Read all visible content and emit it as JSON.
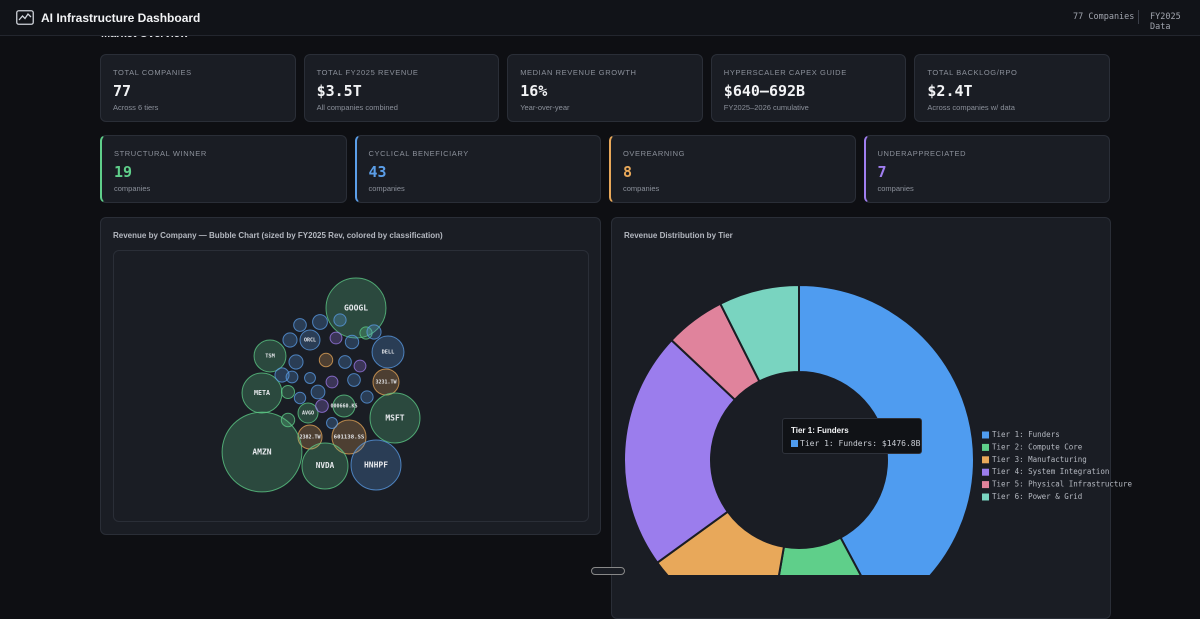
{
  "header": {
    "title": "AI Infrastructure Dashboard",
    "companies": "77 Companies",
    "period": "FY2025 Data"
  },
  "section_title": "Market Overview",
  "stats": [
    {
      "label": "TOTAL COMPANIES",
      "value": 77,
      "note": "Across 6 tiers"
    },
    {
      "label": "TOTAL FY2025 REVENUE",
      "value": "$3.5T",
      "note": "All companies combined"
    },
    {
      "label": "MEDIAN REVENUE GROWTH",
      "value": "16%",
      "note": "Year-over-year"
    },
    {
      "label": "HYPERSCALER CAPEX GUIDE",
      "value": "$640–692B",
      "note": "FY2025–2026 cumulative"
    },
    {
      "label": "TOTAL BACKLOG/RPO",
      "value": "$2.4T",
      "note": "Across companies w/ data"
    }
  ],
  "classifications": [
    {
      "label": "STRUCTURAL WINNER",
      "value": 19,
      "note": "companies",
      "color": "#5fcf8a"
    },
    {
      "label": "CYCLICAL BENEFICIARY",
      "value": 43,
      "note": "companies",
      "color": "#5b9ee8"
    },
    {
      "label": "OVEREARNING",
      "value": 8,
      "note": "companies",
      "color": "#e8a85a"
    },
    {
      "label": "UNDERAPPRECIATED",
      "value": 7,
      "note": "companies",
      "color": "#a07ef0"
    }
  ],
  "chart_data": [
    {
      "type": "bubble",
      "title": "Revenue by Company — Bubble Chart (sized by FY2025 Rev, colored by classification)",
      "points": [
        {
          "label": "GOOGL",
          "value": 360,
          "color": "#5fcf8a"
        },
        {
          "label": "DELL",
          "value": 102,
          "color": "#5b9ee8"
        },
        {
          "label": "TSM",
          "value": 102,
          "color": "#5fcf8a"
        },
        {
          "label": "ORCL",
          "value": 40,
          "color": "#5b9ee8"
        },
        {
          "label": "3231.TW",
          "value": 68,
          "color": "#e8a85a"
        },
        {
          "label": "META",
          "value": 160,
          "color": "#5fcf8a"
        },
        {
          "label": "MSFT",
          "value": 250,
          "color": "#5fcf8a"
        },
        {
          "label": "AVGO",
          "value": 40,
          "color": "#5fcf8a"
        },
        {
          "label": "000660.KS",
          "value": 48,
          "color": "#5fcf8a"
        },
        {
          "label": "2382.TW",
          "value": 58,
          "color": "#e8a85a"
        },
        {
          "label": "601138.SS",
          "value": 116,
          "color": "#e8a85a"
        },
        {
          "label": "AMZN",
          "value": 638,
          "color": "#5fcf8a"
        },
        {
          "label": "NVDA",
          "value": 212,
          "color": "#5fcf8a"
        },
        {
          "label": "HNHPF",
          "value": 250,
          "color": "#5b9ee8"
        },
        {
          "label": null,
          "value": 20,
          "color": "#5b9ee8"
        },
        {
          "label": null,
          "value": 16,
          "color": "#5b9ee8"
        },
        {
          "label": null,
          "value": 22,
          "color": "#5b9ee8"
        },
        {
          "label": null,
          "value": 14,
          "color": "#a07ef0"
        },
        {
          "label": null,
          "value": 18,
          "color": "#5b9ee8"
        },
        {
          "label": null,
          "value": 15,
          "color": "#5fcf8a"
        },
        {
          "label": null,
          "value": 20,
          "color": "#5b9ee8"
        },
        {
          "label": null,
          "value": 12,
          "color": "#5b9ee8"
        },
        {
          "label": null,
          "value": 18,
          "color": "#e8a85a"
        },
        {
          "label": null,
          "value": 16,
          "color": "#5b9ee8"
        },
        {
          "label": null,
          "value": 14,
          "color": "#a07ef0"
        },
        {
          "label": null,
          "value": 20,
          "color": "#5b9ee8"
        },
        {
          "label": null,
          "value": 17,
          "color": "#5fcf8a"
        },
        {
          "label": null,
          "value": 13,
          "color": "#5b9ee8"
        },
        {
          "label": null,
          "value": 19,
          "color": "#5b9ee8"
        },
        {
          "label": null,
          "value": 14,
          "color": "#a07ef0"
        },
        {
          "label": null,
          "value": 16,
          "color": "#5b9ee8"
        },
        {
          "label": null,
          "value": 15,
          "color": "#5b9ee8"
        },
        {
          "label": null,
          "value": 18,
          "color": "#5fcf8a"
        },
        {
          "label": null,
          "value": 12,
          "color": "#5b9ee8"
        },
        {
          "label": null,
          "value": 14,
          "color": "#5b9ee8"
        },
        {
          "label": null,
          "value": 16,
          "color": "#a07ef0"
        },
        {
          "label": null,
          "value": 20,
          "color": "#5b9ee8"
        },
        {
          "label": null,
          "value": 15,
          "color": "#5b9ee8"
        }
      ]
    },
    {
      "type": "donut",
      "title": "Revenue Distribution by Tier",
      "categories": [
        "Tier 1: Funders",
        "Tier 2: Compute Core",
        "Tier 3: Manufacturing",
        "Tier 4: System Integration",
        "Tier 5: Physical Infrastructure",
        "Tier 6: Power & Grid"
      ],
      "values": [
        1476.8,
        370,
        430,
        770,
        195,
        260
      ],
      "colors": [
        "#4f9cf0",
        "#5fcf8a",
        "#e8a85a",
        "#9b7ded",
        "#e0839c",
        "#79d4c0"
      ],
      "legend": "right",
      "tooltip": {
        "title": "Tier 1: Funders",
        "label": "Tier 1: Funders: $1476.8B"
      }
    }
  ]
}
